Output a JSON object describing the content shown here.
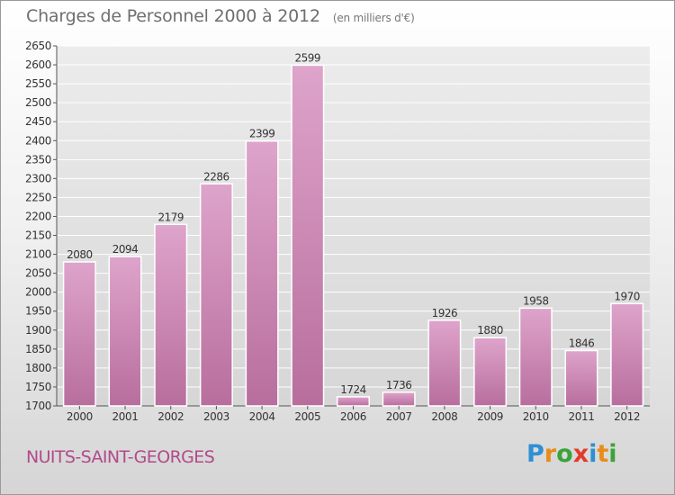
{
  "header": {
    "title": "Charges de Personnel 2000 à 2012",
    "subtitle": "(en milliers d'€)"
  },
  "footer": {
    "commune": "NUITS-SAINT-GEORGES",
    "logo_text": "Proxiti",
    "logo_colors": [
      "#2f8fd3",
      "#e88c1b",
      "#3aa33a",
      "#e23a2d",
      "#2f8fd3",
      "#e88c1b",
      "#3aa33a"
    ]
  },
  "colors": {
    "bar_top": "#dea4cb",
    "bar_bottom": "#b86e9d",
    "bar_stroke": "#ffffff",
    "axis_text": "#333333",
    "grid": "#ffffff"
  },
  "chart_data": {
    "type": "bar",
    "categories": [
      "2000",
      "2001",
      "2002",
      "2003",
      "2004",
      "2005",
      "2006",
      "2007",
      "2008",
      "2009",
      "2010",
      "2011",
      "2012"
    ],
    "values": [
      2080,
      2094,
      2179,
      2286,
      2399,
      2599,
      1724,
      1736,
      1926,
      1880,
      1958,
      1846,
      1970
    ],
    "title": "Charges de Personnel 2000 à 2012",
    "subtitle": "(en milliers d'€)",
    "xlabel": "",
    "ylabel": "",
    "ylim": [
      1700,
      2650
    ],
    "ytick_step": 50,
    "grid": true,
    "data_labels": true
  }
}
